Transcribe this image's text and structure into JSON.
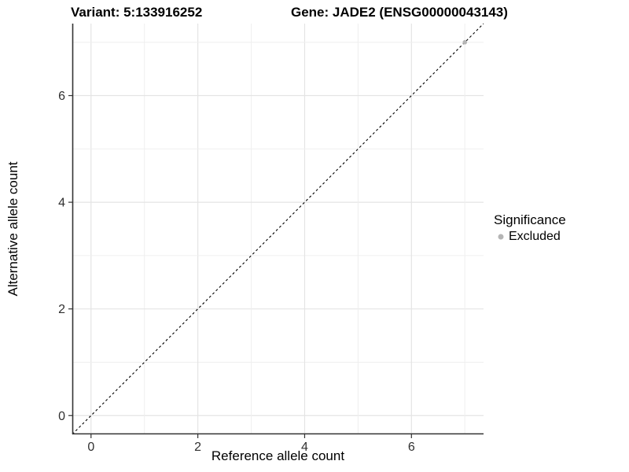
{
  "titles": {
    "left": "Variant: 5:133916252",
    "right": "Gene: JADE2 (ENSG00000043143)"
  },
  "chart_data": {
    "type": "scatter",
    "xlabel": "Reference allele count",
    "ylabel": "Alternative allele count",
    "xlim": [
      -0.35,
      7.35
    ],
    "ylim": [
      -0.35,
      7.35
    ],
    "xticks": [
      0,
      2,
      4,
      6
    ],
    "yticks": [
      0,
      2,
      4,
      6
    ],
    "grid": {
      "major_every": 2,
      "minor_every": 1,
      "integer_lines_from": 0,
      "integer_lines_to": 7
    },
    "series": [
      {
        "name": "Excluded",
        "color": "#b5b5b5",
        "points": [
          [
            7,
            7
          ]
        ]
      }
    ],
    "reference_line": {
      "type": "identity",
      "style": "dashed",
      "color": "#000000"
    },
    "legend": {
      "title": "Significance",
      "position": "right",
      "items": [
        {
          "label": "Excluded",
          "color": "#b5b5b5"
        }
      ]
    }
  },
  "style_colors": {
    "axis_line": "#333333",
    "tick_text": "#303030",
    "grid_major": "#e4e4e4",
    "grid_minor": "#efefef",
    "background": "#ffffff"
  }
}
